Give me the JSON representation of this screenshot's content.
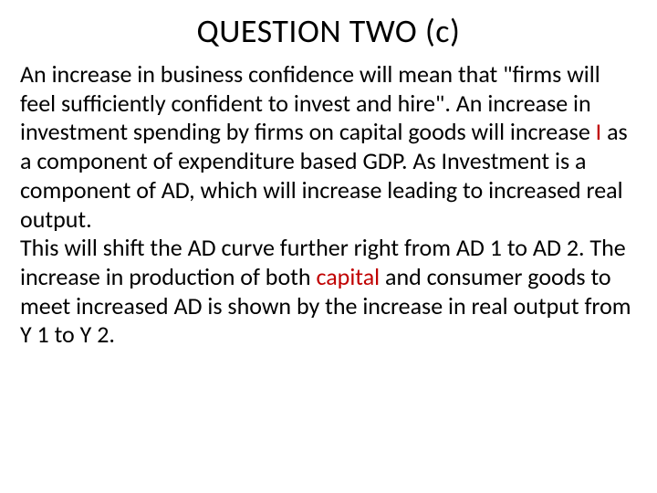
{
  "heading": "QUESTION TWO (c)",
  "body": {
    "part1": "An increase in business confidence will mean  that \"firms will feel sufficiently confident to invest and hire\".  An increase in investment spending by firms on capital goods will increase ",
    "highlight1": "I",
    "part2": " as a component of expenditure based GDP. As Investment is a component of AD, which will increase leading to increased real output.",
    "part3": "This will shift the AD curve further right from AD 1 to AD 2. The increase in production of both ",
    "highlight2": "capital",
    "part4": " and consumer goods to meet increased AD is shown by the increase in real output from Y 1 to Y 2."
  },
  "colors": {
    "background": "#ffffff",
    "text": "#000000",
    "highlight": "#c00000"
  },
  "typography": {
    "heading_fontsize": 36,
    "body_fontsize": 26,
    "font_family": "Calibri"
  }
}
